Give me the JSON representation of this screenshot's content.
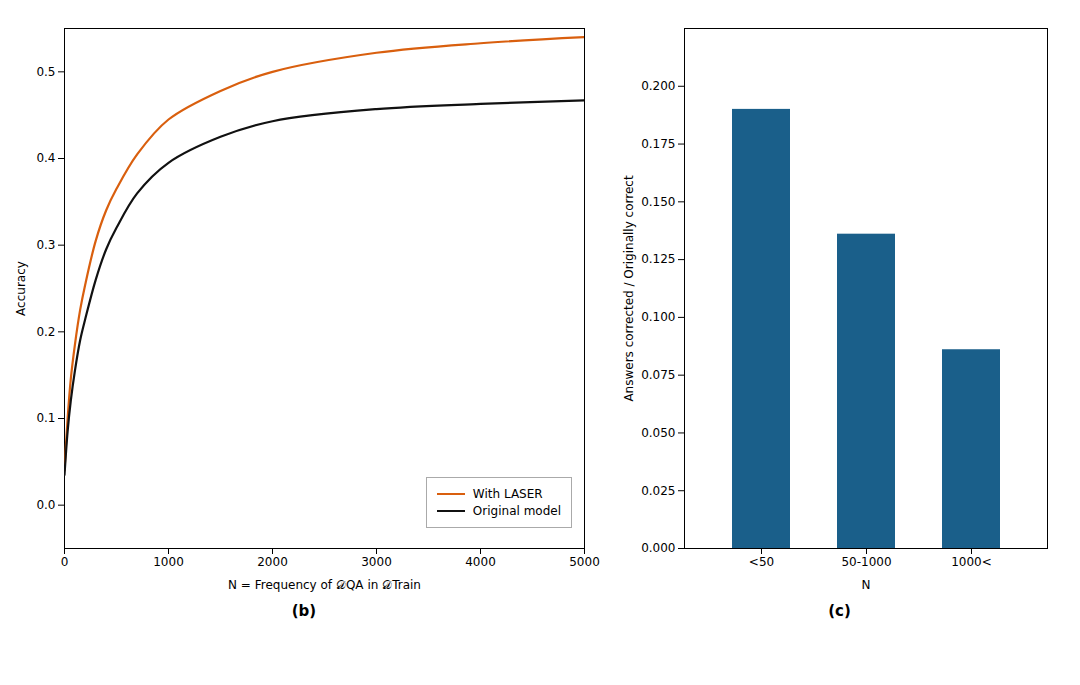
{
  "chart_data": [
    {
      "type": "line",
      "title": "(b)",
      "xlabel": "N = Frequency of 𝒟QA in 𝒟Train",
      "ylabel": "Accuracy",
      "x": [
        0,
        30,
        60,
        100,
        150,
        200,
        300,
        400,
        500,
        700,
        1000,
        1500,
        2000,
        3000,
        4000,
        5000
      ],
      "series": [
        {
          "name": "With LASER",
          "color": "#d95f0e",
          "values": [
            0.04,
            0.1,
            0.145,
            0.185,
            0.225,
            0.255,
            0.305,
            0.34,
            0.365,
            0.405,
            0.445,
            0.478,
            0.5,
            0.522,
            0.533,
            0.54
          ]
        },
        {
          "name": "Original model",
          "color": "#111111",
          "values": [
            0.035,
            0.085,
            0.12,
            0.155,
            0.19,
            0.215,
            0.26,
            0.295,
            0.32,
            0.36,
            0.395,
            0.425,
            0.443,
            0.457,
            0.463,
            0.467
          ]
        }
      ],
      "xlim": [
        0,
        5000
      ],
      "xticks": [
        0,
        1000,
        2000,
        3000,
        4000,
        5000
      ],
      "ylim": [
        -0.05,
        0.55
      ],
      "yticks": [
        {
          "value": 0,
          "label": "0.0"
        },
        0.1,
        0.2,
        0.3,
        0.4,
        0.5
      ],
      "legend": "lower right"
    },
    {
      "type": "bar",
      "title": "(c)",
      "xlabel": "N",
      "ylabel": "Answers corrected / Originally correct",
      "categories": [
        "<50",
        "50-1000",
        "1000<"
      ],
      "values": [
        0.19,
        0.136,
        0.086
      ],
      "color": "#1a5f8a",
      "ylim": [
        0,
        0.225
      ],
      "yticks": [
        {
          "value": 0,
          "label": "0.000"
        },
        0.025,
        {
          "value": 0.05,
          "label": "0.050"
        },
        0.075,
        {
          "value": 0.1,
          "label": "0.100"
        },
        0.125,
        {
          "value": 0.15,
          "label": "0.150"
        },
        0.175,
        {
          "value": 0.2,
          "label": "0.200"
        }
      ]
    }
  ]
}
